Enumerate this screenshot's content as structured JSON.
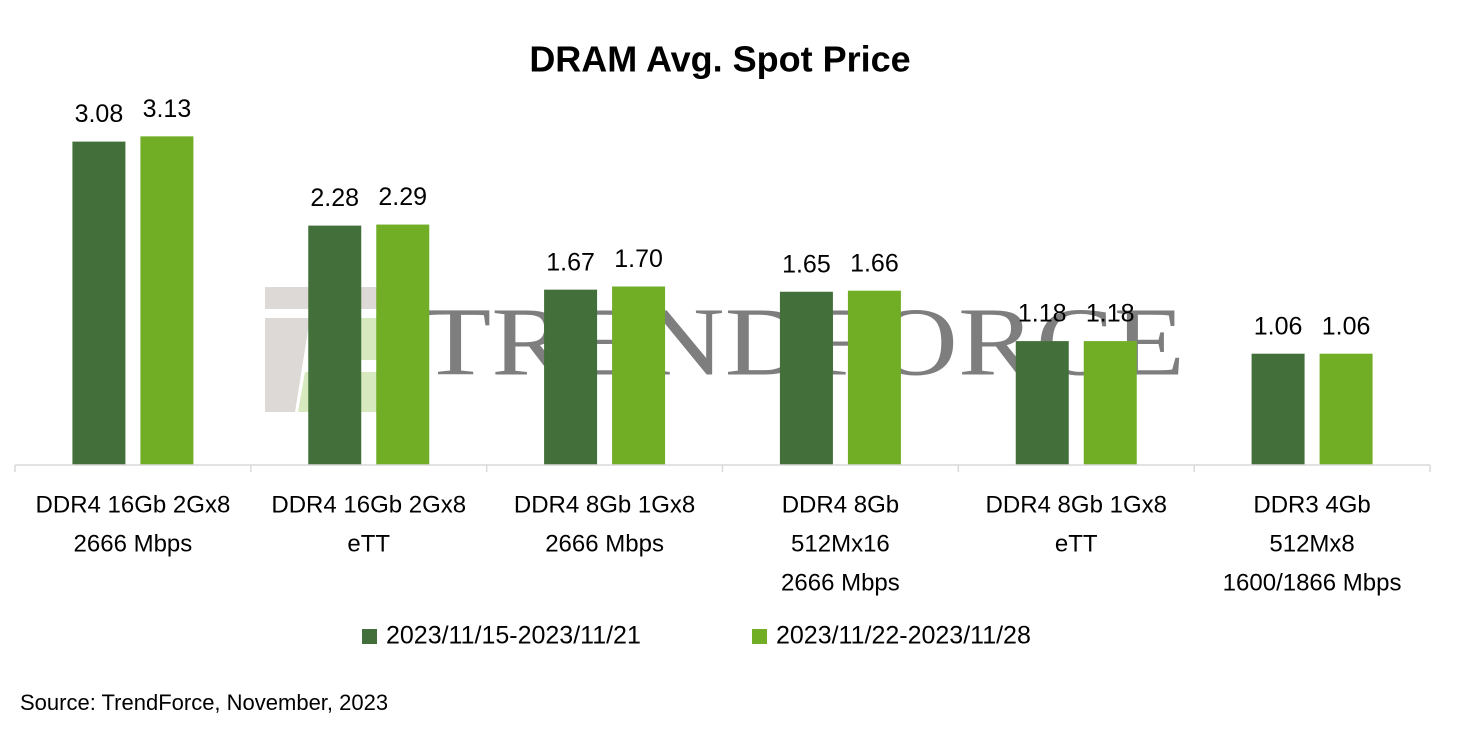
{
  "chart_data": {
    "type": "bar",
    "title": "DRAM Avg. Spot Price",
    "categories": [
      [
        "DDR4 16Gb 2Gx8",
        "2666 Mbps"
      ],
      [
        "DDR4 16Gb 2Gx8",
        "eTT"
      ],
      [
        "DDR4 8Gb 1Gx8",
        "2666 Mbps"
      ],
      [
        "DDR4 8Gb",
        "512Mx16",
        "2666 Mbps"
      ],
      [
        "DDR4 8Gb 1Gx8",
        "eTT"
      ],
      [
        "DDR3 4Gb",
        "512Mx8",
        "1600/1866 Mbps"
      ]
    ],
    "series": [
      {
        "name": "2023/11/15-2023/11/21",
        "color": "#43703a",
        "values": [
          3.08,
          2.28,
          1.67,
          1.65,
          1.18,
          1.06
        ],
        "value_labels": [
          "3.08",
          "2.28",
          "1.67",
          "1.65",
          "1.18",
          "1.06"
        ]
      },
      {
        "name": "2023/11/22-2023/11/28",
        "color": "#71ae26",
        "values": [
          3.13,
          2.29,
          1.7,
          1.66,
          1.18,
          1.06
        ],
        "value_labels": [
          "3.13",
          "2.29",
          "1.70",
          "1.66",
          "1.18",
          "1.06"
        ]
      }
    ],
    "ylim": [
      0,
      4
    ],
    "legend": "bottom",
    "watermark": "TRENDFORCE",
    "note": "Source: TrendForce, November, 2023"
  }
}
